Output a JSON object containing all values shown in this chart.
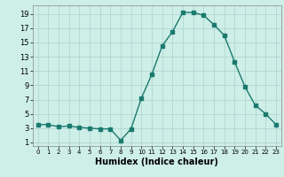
{
  "x": [
    0,
    1,
    2,
    3,
    4,
    5,
    6,
    7,
    8,
    9,
    10,
    11,
    12,
    13,
    14,
    15,
    16,
    17,
    18,
    19,
    20,
    21,
    22,
    23
  ],
  "y": [
    3.5,
    3.5,
    3.2,
    3.3,
    3.1,
    3.0,
    2.9,
    2.9,
    1.3,
    2.9,
    7.2,
    10.5,
    14.5,
    16.5,
    19.2,
    19.2,
    18.8,
    17.5,
    16.0,
    12.3,
    8.8,
    6.2,
    5.0,
    3.5
  ],
  "line_color": "#1a7a6e",
  "marker": "s",
  "marker_size": 2.5,
  "bg_color": "#ceeee8",
  "grid_color": "#aad4cc",
  "xlabel": "Humidex (Indice chaleur)",
  "xlim": [
    -0.5,
    23.5
  ],
  "ylim": [
    0.5,
    20.2
  ],
  "yticks": [
    1,
    3,
    5,
    7,
    9,
    11,
    13,
    15,
    17,
    19
  ],
  "xticks": [
    0,
    1,
    2,
    3,
    4,
    5,
    6,
    7,
    8,
    9,
    10,
    11,
    12,
    13,
    14,
    15,
    16,
    17,
    18,
    19,
    20,
    21,
    22,
    23
  ],
  "xlabel_fontsize": 7,
  "tick_fontsize": 6,
  "linewidth": 1.0
}
